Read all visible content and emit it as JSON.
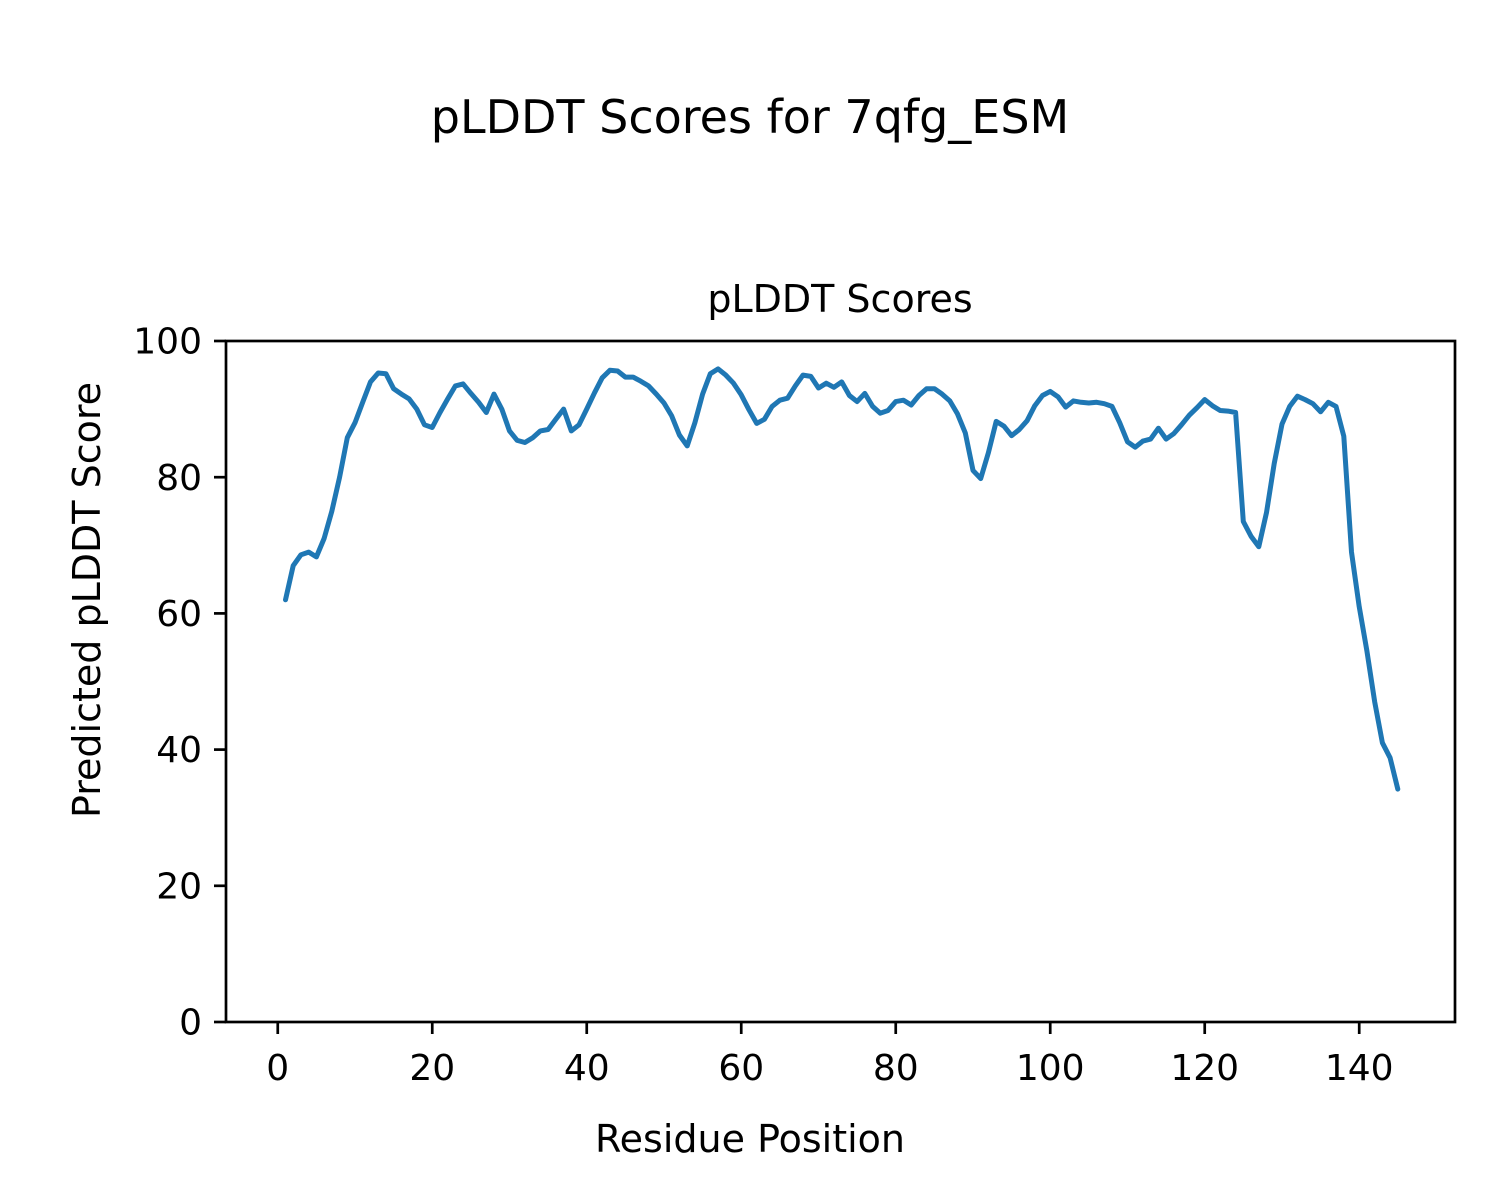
{
  "figure": {
    "suptitle": "pLDDT Scores for 7qfg_ESM",
    "background_color": "#ffffff",
    "text_color": "#000000"
  },
  "chart_data": {
    "type": "line",
    "title": "pLDDT Scores",
    "suptitle": "pLDDT Scores for 7qfg_ESM",
    "xlabel": "Residue Position",
    "ylabel": "Predicted pLDDT Score",
    "legend": "none",
    "grid": false,
    "line_color": "#1f77b4",
    "line_width": 5,
    "xlim": [
      -6.7,
      152.4
    ],
    "ylim": [
      0,
      100
    ],
    "xticks": [
      0,
      20,
      40,
      60,
      80,
      100,
      120,
      140
    ],
    "yticks": [
      0,
      20,
      40,
      60,
      80,
      100
    ],
    "x_start": 1,
    "x_step": 1,
    "values": [
      62.0,
      67.0,
      68.6,
      69.0,
      68.3,
      71.0,
      75.0,
      80.0,
      85.8,
      88.0,
      91.0,
      94.0,
      95.3,
      95.2,
      93.0,
      92.2,
      91.5,
      90.0,
      87.7,
      87.3,
      89.5,
      91.5,
      93.4,
      93.7,
      92.3,
      91.0,
      89.5,
      92.2,
      90.0,
      86.8,
      85.4,
      85.1,
      85.8,
      86.8,
      87.0,
      88.5,
      90.0,
      86.8,
      87.7,
      90.0,
      92.4,
      94.6,
      95.7,
      95.6,
      94.7,
      94.7,
      94.1,
      93.4,
      92.2,
      90.9,
      89.0,
      86.2,
      84.6,
      88.0,
      92.2,
      95.2,
      95.9,
      95.0,
      93.8,
      92.1,
      89.9,
      87.9,
      88.5,
      90.4,
      91.3,
      91.6,
      93.4,
      95.0,
      94.8,
      93.1,
      93.8,
      93.2,
      94.0,
      92.0,
      91.1,
      92.3,
      90.4,
      89.4,
      89.8,
      91.1,
      91.3,
      90.6,
      92.0,
      93.0,
      93.0,
      92.2,
      91.2,
      89.3,
      86.5,
      81.0,
      79.8,
      83.6,
      88.2,
      87.5,
      86.1,
      87.0,
      88.3,
      90.5,
      92.0,
      92.6,
      91.8,
      90.3,
      91.2,
      91.0,
      90.9,
      91.0,
      90.8,
      90.4,
      88.0,
      85.2,
      84.4,
      85.3,
      85.6,
      87.2,
      85.6,
      86.4,
      87.7,
      89.1,
      90.2,
      91.4,
      90.5,
      89.8,
      89.7,
      89.5,
      73.5,
      71.3,
      69.8,
      74.8,
      82.0,
      87.8,
      90.4,
      91.9,
      91.4,
      90.8,
      89.6,
      91.0,
      90.4,
      86.0,
      69.0,
      61.0,
      54.5,
      47.0,
      41.0,
      38.8,
      34.2
    ]
  }
}
